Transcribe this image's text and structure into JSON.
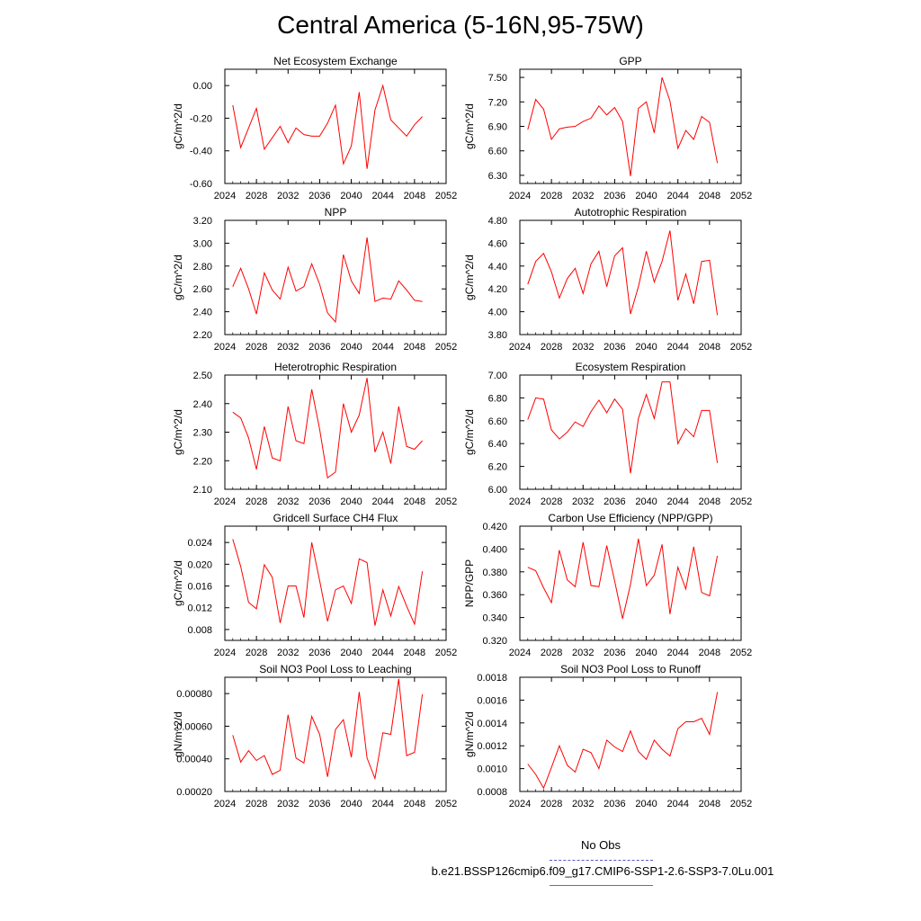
{
  "title": "Central America (5-16N,95-75W)",
  "legend": {
    "obs_label": "No Obs",
    "obs_color": "#5a5ac8",
    "run_label": "b.e21.BSSP126cmip6.f09_g17.CMIP6-SSP1-2.6-SSP3-7.0Lu.001",
    "run_color": "#ff0000"
  },
  "chart_data": [
    {
      "type": "line",
      "title": "Net Ecosystem Exchange",
      "ylabel": "gC/m^2/d",
      "xlim": [
        2024,
        2052
      ],
      "ylim": [
        -0.6,
        0.1
      ],
      "xticks": [
        "2024",
        "2028",
        "2032",
        "2036",
        "2040",
        "2044",
        "2048",
        "2052"
      ],
      "yticks": [
        {
          "v": -0.6,
          "label": "-0.60"
        },
        {
          "v": -0.4,
          "label": "-0.40"
        },
        {
          "v": -0.2,
          "label": "-0.20"
        },
        {
          "v": 0.0,
          "label": "0.00"
        }
      ],
      "x": [
        2025,
        2026,
        2027,
        2028,
        2029,
        2030,
        2031,
        2032,
        2033,
        2034,
        2035,
        2036,
        2037,
        2038,
        2039,
        2040,
        2041,
        2042,
        2043,
        2044,
        2045,
        2046,
        2047,
        2048,
        2049
      ],
      "values": [
        -0.12,
        -0.38,
        -0.26,
        -0.14,
        -0.39,
        -0.32,
        -0.25,
        -0.35,
        -0.26,
        -0.3,
        -0.31,
        -0.31,
        -0.23,
        -0.12,
        -0.48,
        -0.37,
        -0.04,
        -0.51,
        -0.15,
        0.0,
        -0.21,
        -0.26,
        -0.31,
        -0.24,
        -0.19
      ]
    },
    {
      "type": "line",
      "title": "GPP",
      "ylabel": "gC/m^2/d",
      "xlim": [
        2024,
        2052
      ],
      "ylim": [
        6.2,
        7.6
      ],
      "xticks": [
        "2024",
        "2028",
        "2032",
        "2036",
        "2040",
        "2044",
        "2048",
        "2052"
      ],
      "yticks": [
        {
          "v": 6.3,
          "label": "6.30"
        },
        {
          "v": 6.6,
          "label": "6.60"
        },
        {
          "v": 6.9,
          "label": "6.90"
        },
        {
          "v": 7.2,
          "label": "7.20"
        },
        {
          "v": 7.5,
          "label": "7.50"
        }
      ],
      "x": [
        2025,
        2026,
        2027,
        2028,
        2029,
        2030,
        2031,
        2032,
        2033,
        2034,
        2035,
        2036,
        2037,
        2038,
        2039,
        2040,
        2041,
        2042,
        2043,
        2044,
        2045,
        2046,
        2047,
        2048,
        2049
      ],
      "values": [
        6.86,
        7.23,
        7.11,
        6.74,
        6.87,
        6.89,
        6.9,
        6.96,
        7.0,
        7.15,
        7.04,
        7.13,
        6.96,
        6.29,
        7.12,
        7.2,
        6.82,
        7.5,
        7.21,
        6.63,
        6.85,
        6.74,
        7.02,
        6.95,
        6.45
      ]
    },
    {
      "type": "line",
      "title": "NPP",
      "ylabel": "gC/m^2/d",
      "xlim": [
        2024,
        2052
      ],
      "ylim": [
        2.2,
        3.2
      ],
      "xticks": [
        "2024",
        "2028",
        "2032",
        "2036",
        "2040",
        "2044",
        "2048",
        "2052"
      ],
      "yticks": [
        {
          "v": 2.2,
          "label": "2.20"
        },
        {
          "v": 2.4,
          "label": "2.40"
        },
        {
          "v": 2.6,
          "label": "2.60"
        },
        {
          "v": 2.8,
          "label": "2.80"
        },
        {
          "v": 3.0,
          "label": "3.00"
        },
        {
          "v": 3.2,
          "label": "3.20"
        }
      ],
      "x": [
        2025,
        2026,
        2027,
        2028,
        2029,
        2030,
        2031,
        2032,
        2033,
        2034,
        2035,
        2036,
        2037,
        2038,
        2039,
        2040,
        2041,
        2042,
        2043,
        2044,
        2045,
        2046,
        2047,
        2048,
        2049
      ],
      "values": [
        2.62,
        2.78,
        2.6,
        2.38,
        2.74,
        2.59,
        2.51,
        2.79,
        2.58,
        2.62,
        2.82,
        2.64,
        2.39,
        2.31,
        2.9,
        2.67,
        2.56,
        3.05,
        2.49,
        2.52,
        2.51,
        2.67,
        2.59,
        2.5,
        2.49
      ]
    },
    {
      "type": "line",
      "title": "Autotrophic Respiration",
      "ylabel": "gC/m^2/d",
      "xlim": [
        2024,
        2052
      ],
      "ylim": [
        3.8,
        4.8
      ],
      "xticks": [
        "2024",
        "2028",
        "2032",
        "2036",
        "2040",
        "2044",
        "2048",
        "2052"
      ],
      "yticks": [
        {
          "v": 3.8,
          "label": "3.80"
        },
        {
          "v": 4.0,
          "label": "4.00"
        },
        {
          "v": 4.2,
          "label": "4.20"
        },
        {
          "v": 4.4,
          "label": "4.40"
        },
        {
          "v": 4.6,
          "label": "4.60"
        },
        {
          "v": 4.8,
          "label": "4.80"
        }
      ],
      "x": [
        2025,
        2026,
        2027,
        2028,
        2029,
        2030,
        2031,
        2032,
        2033,
        2034,
        2035,
        2036,
        2037,
        2038,
        2039,
        2040,
        2041,
        2042,
        2043,
        2044,
        2045,
        2046,
        2047,
        2048,
        2049
      ],
      "values": [
        4.24,
        4.44,
        4.51,
        4.35,
        4.12,
        4.29,
        4.38,
        4.16,
        4.42,
        4.53,
        4.22,
        4.49,
        4.56,
        3.98,
        4.22,
        4.53,
        4.26,
        4.44,
        4.71,
        4.1,
        4.33,
        4.07,
        4.44,
        4.45,
        3.97
      ]
    },
    {
      "type": "line",
      "title": "Heterotrophic Respiration",
      "ylabel": "gC/m^2/d",
      "xlim": [
        2024,
        2052
      ],
      "ylim": [
        2.1,
        2.5
      ],
      "xticks": [
        "2024",
        "2028",
        "2032",
        "2036",
        "2040",
        "2044",
        "2048",
        "2052"
      ],
      "yticks": [
        {
          "v": 2.1,
          "label": "2.10"
        },
        {
          "v": 2.2,
          "label": "2.20"
        },
        {
          "v": 2.3,
          "label": "2.30"
        },
        {
          "v": 2.4,
          "label": "2.40"
        },
        {
          "v": 2.5,
          "label": "2.50"
        }
      ],
      "x": [
        2025,
        2026,
        2027,
        2028,
        2029,
        2030,
        2031,
        2032,
        2033,
        2034,
        2035,
        2036,
        2037,
        2038,
        2039,
        2040,
        2041,
        2042,
        2043,
        2044,
        2045,
        2046,
        2047,
        2048,
        2049
      ],
      "values": [
        2.37,
        2.35,
        2.28,
        2.17,
        2.32,
        2.21,
        2.2,
        2.39,
        2.27,
        2.26,
        2.45,
        2.31,
        2.14,
        2.16,
        2.4,
        2.3,
        2.36,
        2.49,
        2.23,
        2.3,
        2.19,
        2.39,
        2.25,
        2.24,
        2.27
      ]
    },
    {
      "type": "line",
      "title": "Ecosystem Respiration",
      "ylabel": "gC/m^2/d",
      "xlim": [
        2024,
        2052
      ],
      "ylim": [
        6.0,
        7.0
      ],
      "xticks": [
        "2024",
        "2028",
        "2032",
        "2036",
        "2040",
        "2044",
        "2048",
        "2052"
      ],
      "yticks": [
        {
          "v": 6.0,
          "label": "6.00"
        },
        {
          "v": 6.2,
          "label": "6.20"
        },
        {
          "v": 6.4,
          "label": "6.40"
        },
        {
          "v": 6.6,
          "label": "6.60"
        },
        {
          "v": 6.8,
          "label": "6.80"
        },
        {
          "v": 7.0,
          "label": "7.00"
        }
      ],
      "x": [
        2025,
        2026,
        2027,
        2028,
        2029,
        2030,
        2031,
        2032,
        2033,
        2034,
        2035,
        2036,
        2037,
        2038,
        2039,
        2040,
        2041,
        2042,
        2043,
        2044,
        2045,
        2046,
        2047,
        2048,
        2049
      ],
      "values": [
        6.61,
        6.8,
        6.79,
        6.52,
        6.44,
        6.5,
        6.59,
        6.55,
        6.68,
        6.78,
        6.67,
        6.79,
        6.7,
        6.14,
        6.62,
        6.83,
        6.62,
        6.94,
        6.94,
        6.4,
        6.53,
        6.46,
        6.69,
        6.69,
        6.23
      ]
    },
    {
      "type": "line",
      "title": "Gridcell Surface CH4 Flux",
      "ylabel": "gC/m^2/d",
      "xlim": [
        2024,
        2052
      ],
      "ylim": [
        0.006,
        0.027
      ],
      "xticks": [
        "2024",
        "2028",
        "2032",
        "2036",
        "2040",
        "2044",
        "2048",
        "2052"
      ],
      "yticks": [
        {
          "v": 0.008,
          "label": "0.008"
        },
        {
          "v": 0.012,
          "label": "0.012"
        },
        {
          "v": 0.016,
          "label": "0.016"
        },
        {
          "v": 0.02,
          "label": "0.020"
        },
        {
          "v": 0.024,
          "label": "0.024"
        }
      ],
      "x": [
        2025,
        2026,
        2027,
        2028,
        2029,
        2030,
        2031,
        2032,
        2033,
        2034,
        2035,
        2036,
        2037,
        2038,
        2039,
        2040,
        2041,
        2042,
        2043,
        2044,
        2045,
        2046,
        2047,
        2048,
        2049
      ],
      "values": [
        0.0246,
        0.0196,
        0.013,
        0.0118,
        0.0199,
        0.0176,
        0.0092,
        0.016,
        0.016,
        0.0102,
        0.024,
        0.017,
        0.0095,
        0.0153,
        0.016,
        0.0128,
        0.021,
        0.0203,
        0.0087,
        0.0153,
        0.0105,
        0.0159,
        0.0123,
        0.009,
        0.0187
      ]
    },
    {
      "type": "line",
      "title": "Carbon Use Efficiency (NPP/GPP)",
      "ylabel": "NPP/GPP",
      "xlim": [
        2024,
        2052
      ],
      "ylim": [
        0.32,
        0.42
      ],
      "xticks": [
        "2024",
        "2028",
        "2032",
        "2036",
        "2040",
        "2044",
        "2048",
        "2052"
      ],
      "yticks": [
        {
          "v": 0.32,
          "label": "0.320"
        },
        {
          "v": 0.34,
          "label": "0.340"
        },
        {
          "v": 0.36,
          "label": "0.360"
        },
        {
          "v": 0.38,
          "label": "0.380"
        },
        {
          "v": 0.4,
          "label": "0.400"
        },
        {
          "v": 0.42,
          "label": "0.420"
        }
      ],
      "x": [
        2025,
        2026,
        2027,
        2028,
        2029,
        2030,
        2031,
        2032,
        2033,
        2034,
        2035,
        2036,
        2037,
        2038,
        2039,
        2040,
        2041,
        2042,
        2043,
        2044,
        2045,
        2046,
        2047,
        2048,
        2049
      ],
      "values": [
        0.384,
        0.381,
        0.366,
        0.353,
        0.399,
        0.373,
        0.367,
        0.406,
        0.368,
        0.367,
        0.403,
        0.372,
        0.339,
        0.369,
        0.409,
        0.368,
        0.377,
        0.404,
        0.343,
        0.384,
        0.365,
        0.402,
        0.362,
        0.359,
        0.394
      ]
    },
    {
      "type": "line",
      "title": "Soil NO3 Pool Loss to Leaching",
      "ylabel": "gN/m^2/d",
      "xlim": [
        2024,
        2052
      ],
      "ylim": [
        0.0002,
        0.0009
      ],
      "xticks": [
        "2024",
        "2028",
        "2032",
        "2036",
        "2040",
        "2044",
        "2048",
        "2052"
      ],
      "yticks": [
        {
          "v": 0.0002,
          "label": "0.00020"
        },
        {
          "v": 0.0004,
          "label": "0.00040"
        },
        {
          "v": 0.0006,
          "label": "0.00060"
        },
        {
          "v": 0.0008,
          "label": "0.00080"
        }
      ],
      "x": [
        2025,
        2026,
        2027,
        2028,
        2029,
        2030,
        2031,
        2032,
        2033,
        2034,
        2035,
        2036,
        2037,
        2038,
        2039,
        2040,
        2041,
        2042,
        2043,
        2044,
        2045,
        2046,
        2047,
        2048,
        2049
      ],
      "values": [
        0.000545,
        0.00038,
        0.00045,
        0.00039,
        0.00042,
        0.000305,
        0.00033,
        0.00067,
        0.000405,
        0.000375,
        0.00066,
        0.00055,
        0.00029,
        0.00058,
        0.00064,
        0.00041,
        0.00081,
        0.000405,
        0.00028,
        0.00056,
        0.00055,
        0.00089,
        0.00042,
        0.00044,
        0.000795
      ]
    },
    {
      "type": "line",
      "title": "Soil NO3 Pool Loss to Runoff",
      "ylabel": "gN/m^2/d",
      "xlim": [
        2024,
        2052
      ],
      "ylim": [
        0.0008,
        0.0018
      ],
      "xticks": [
        "2024",
        "2028",
        "2032",
        "2036",
        "2040",
        "2044",
        "2048",
        "2052"
      ],
      "yticks": [
        {
          "v": 0.0008,
          "label": "0.0008"
        },
        {
          "v": 0.001,
          "label": "0.0010"
        },
        {
          "v": 0.0012,
          "label": "0.0012"
        },
        {
          "v": 0.0014,
          "label": "0.0014"
        },
        {
          "v": 0.0016,
          "label": "0.0016"
        },
        {
          "v": 0.0018,
          "label": "0.0018"
        }
      ],
      "x": [
        2025,
        2026,
        2027,
        2028,
        2029,
        2030,
        2031,
        2032,
        2033,
        2034,
        2035,
        2036,
        2037,
        2038,
        2039,
        2040,
        2041,
        2042,
        2043,
        2044,
        2045,
        2046,
        2047,
        2048,
        2049
      ],
      "values": [
        0.00104,
        0.00095,
        0.00083,
        0.00101,
        0.0012,
        0.00103,
        0.00097,
        0.00117,
        0.00114,
        0.001,
        0.00125,
        0.00119,
        0.00115,
        0.00133,
        0.00115,
        0.00108,
        0.00125,
        0.00117,
        0.00111,
        0.00135,
        0.00141,
        0.00141,
        0.00144,
        0.0013,
        0.00167
      ]
    }
  ]
}
